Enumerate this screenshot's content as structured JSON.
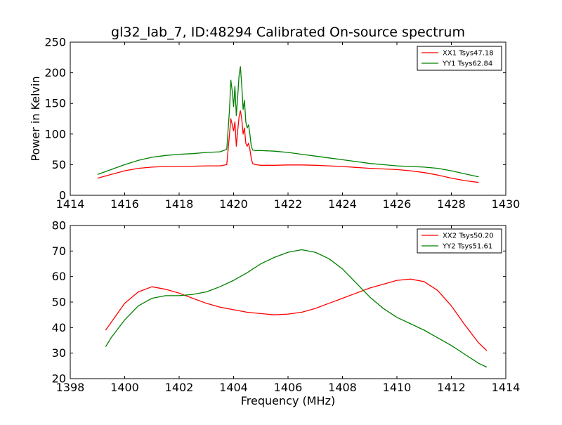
{
  "chart_data": [
    {
      "type": "line",
      "title": "gl32_lab_7, ID:48294 Calibrated On-source spectrum",
      "xlabel": "",
      "ylabel": "Power in Kelvin",
      "xlim": [
        1414,
        1430
      ],
      "ylim": [
        0,
        250
      ],
      "xticks": [
        1414,
        1416,
        1418,
        1420,
        1422,
        1424,
        1426,
        1428,
        1430
      ],
      "yticks": [
        0,
        50,
        100,
        150,
        200,
        250
      ],
      "grid": false,
      "legend_position": "top-right",
      "series": [
        {
          "name": "XX1 Tsys47.18",
          "color": "#ff0000",
          "x": [
            1415.0,
            1415.5,
            1416.0,
            1416.5,
            1417.0,
            1417.5,
            1418.0,
            1418.5,
            1419.0,
            1419.5,
            1419.75,
            1419.85,
            1419.9,
            1419.95,
            1420.0,
            1420.05,
            1420.1,
            1420.15,
            1420.2,
            1420.25,
            1420.3,
            1420.35,
            1420.4,
            1420.45,
            1420.5,
            1420.55,
            1420.6,
            1420.65,
            1420.7,
            1420.8,
            1421.0,
            1421.5,
            1422.0,
            1422.5,
            1423.0,
            1423.5,
            1424.0,
            1424.5,
            1425.0,
            1425.5,
            1426.0,
            1426.5,
            1427.0,
            1427.5,
            1428.0,
            1428.5,
            1429.0
          ],
          "y": [
            28,
            34,
            40,
            44,
            46,
            47,
            47,
            47.5,
            48,
            48,
            50,
            100,
            125,
            115,
            105,
            120,
            80,
            105,
            128,
            138,
            125,
            100,
            110,
            85,
            80,
            85,
            75,
            60,
            52,
            50,
            49,
            49,
            49.5,
            49.5,
            49,
            48,
            47,
            45.5,
            44,
            43,
            42,
            40,
            37,
            33,
            28,
            24,
            21
          ]
        },
        {
          "name": "YY1 Tsys62.84",
          "color": "#008000",
          "x": [
            1415.0,
            1415.5,
            1416.0,
            1416.5,
            1417.0,
            1417.5,
            1418.0,
            1418.5,
            1419.0,
            1419.5,
            1419.75,
            1419.85,
            1419.9,
            1419.95,
            1420.0,
            1420.05,
            1420.1,
            1420.15,
            1420.2,
            1420.25,
            1420.3,
            1420.35,
            1420.4,
            1420.45,
            1420.5,
            1420.55,
            1420.6,
            1420.65,
            1420.7,
            1420.8,
            1421.0,
            1421.5,
            1422.0,
            1422.5,
            1423.0,
            1423.5,
            1424.0,
            1424.5,
            1425.0,
            1425.5,
            1426.0,
            1426.5,
            1427.0,
            1427.5,
            1428.0,
            1428.5,
            1429.0
          ],
          "y": [
            34,
            42,
            50,
            57,
            62,
            65,
            67,
            68,
            70,
            71,
            75,
            140,
            188,
            170,
            145,
            178,
            130,
            160,
            195,
            210,
            180,
            140,
            155,
            120,
            110,
            115,
            100,
            80,
            74,
            73,
            73,
            72,
            70,
            67,
            64,
            61,
            58,
            55,
            52,
            50,
            48,
            47,
            46,
            44,
            40,
            35,
            30
          ]
        }
      ]
    },
    {
      "type": "line",
      "title": "",
      "xlabel": "Frequency (MHz)",
      "ylabel": "",
      "xlim": [
        1398,
        1414
      ],
      "ylim": [
        20,
        80
      ],
      "xticks": [
        1398,
        1400,
        1402,
        1404,
        1406,
        1408,
        1410,
        1412,
        1414
      ],
      "yticks": [
        20,
        30,
        40,
        50,
        60,
        70,
        80
      ],
      "grid": false,
      "legend_position": "top-right",
      "series": [
        {
          "name": "XX2 Tsys50.20",
          "color": "#ff0000",
          "x": [
            1399.3,
            1399.5,
            1400.0,
            1400.5,
            1401.0,
            1401.5,
            1402.0,
            1402.5,
            1403.0,
            1403.5,
            1404.0,
            1404.5,
            1405.0,
            1405.5,
            1406.0,
            1406.5,
            1407.0,
            1407.5,
            1408.0,
            1408.5,
            1409.0,
            1409.5,
            1410.0,
            1410.5,
            1411.0,
            1411.5,
            1412.0,
            1412.5,
            1413.0,
            1413.3
          ],
          "y": [
            39,
            42,
            49.5,
            54,
            56,
            55,
            53.5,
            51.5,
            49.5,
            48,
            47,
            46,
            45.5,
            45,
            45.3,
            46,
            47.5,
            49.5,
            51.5,
            53.5,
            55.5,
            57,
            58.5,
            59,
            58,
            54.5,
            48.5,
            41,
            34,
            31
          ]
        },
        {
          "name": "YY2 Tsys51.61",
          "color": "#008000",
          "x": [
            1399.3,
            1399.5,
            1400.0,
            1400.5,
            1401.0,
            1401.5,
            1402.0,
            1402.5,
            1403.0,
            1403.5,
            1404.0,
            1404.5,
            1405.0,
            1405.5,
            1406.0,
            1406.5,
            1407.0,
            1407.5,
            1408.0,
            1408.5,
            1409.0,
            1409.5,
            1410.0,
            1410.5,
            1411.0,
            1411.5,
            1412.0,
            1412.5,
            1413.0,
            1413.3
          ],
          "y": [
            32.5,
            36,
            43,
            48.5,
            51.5,
            52.5,
            52.5,
            53,
            54,
            56,
            58.5,
            61.5,
            65,
            67.5,
            69.5,
            70.5,
            69.5,
            67,
            63,
            57.5,
            52,
            47.5,
            44,
            41.5,
            39,
            36,
            33,
            29.5,
            26,
            24.5
          ]
        }
      ]
    }
  ]
}
